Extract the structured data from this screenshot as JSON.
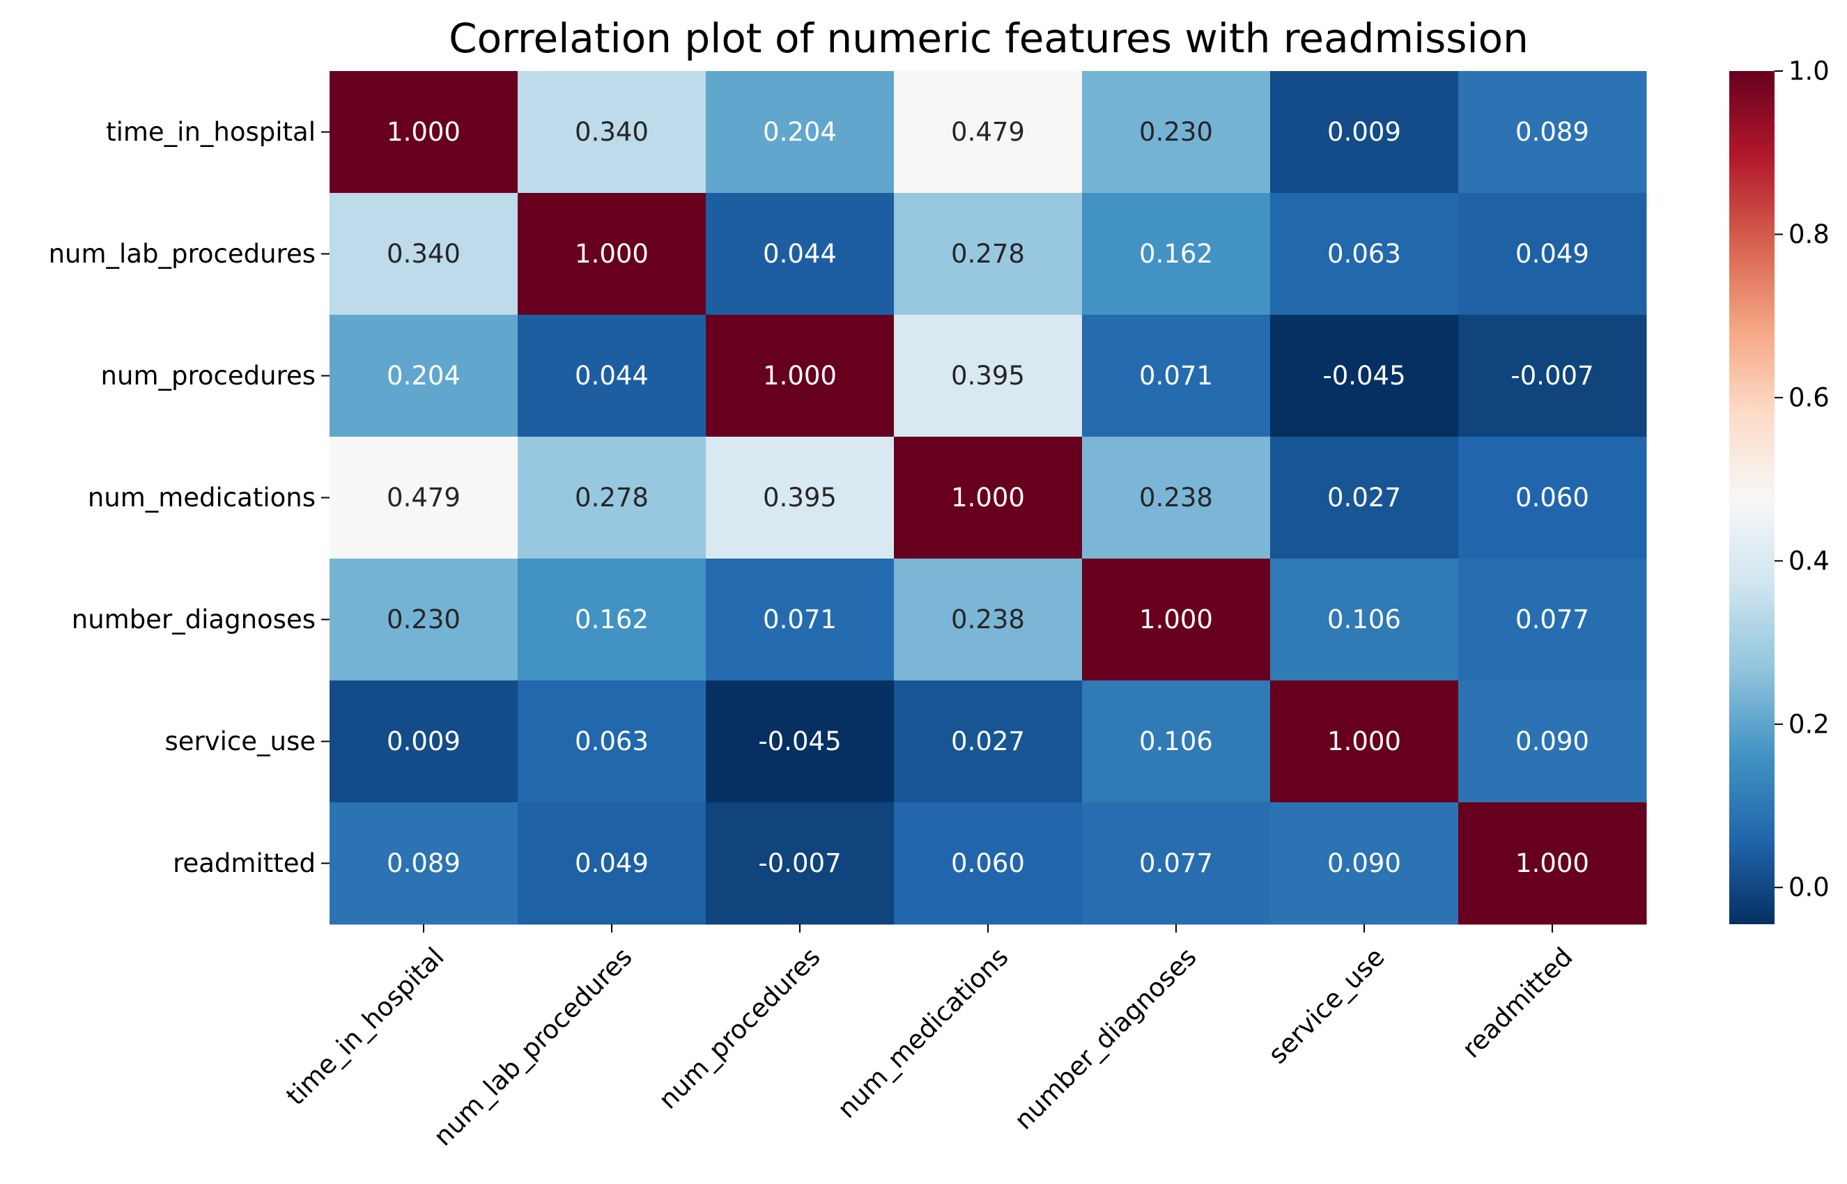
{
  "chart_data": {
    "type": "heatmap",
    "title": "Correlation plot of numeric features with readmission",
    "xlabel": "",
    "ylabel": "",
    "rows": [
      "time_in_hospital",
      "num_lab_procedures",
      "num_procedures",
      "num_medications",
      "number_diagnoses",
      "service_use",
      "readmitted"
    ],
    "columns": [
      "time_in_hospital",
      "num_lab_procedures",
      "num_procedures",
      "num_medications",
      "number_diagnoses",
      "service_use",
      "readmitted"
    ],
    "values": [
      [
        1.0,
        0.34,
        0.204,
        0.479,
        0.23,
        0.009,
        0.089
      ],
      [
        0.34,
        1.0,
        0.044,
        0.278,
        0.162,
        0.063,
        0.049
      ],
      [
        0.204,
        0.044,
        1.0,
        0.395,
        0.071,
        -0.045,
        -0.007
      ],
      [
        0.479,
        0.278,
        0.395,
        1.0,
        0.238,
        0.027,
        0.06
      ],
      [
        0.23,
        0.162,
        0.071,
        0.238,
        1.0,
        0.106,
        0.077
      ],
      [
        0.009,
        0.063,
        -0.045,
        0.027,
        0.106,
        1.0,
        0.09
      ],
      [
        0.089,
        0.049,
        -0.007,
        0.06,
        0.077,
        0.09,
        1.0
      ]
    ],
    "value_format": "3 decimals",
    "colormap": "RdBu_r",
    "colorbar": {
      "range": [
        -0.045,
        1.0
      ],
      "ticks": [
        0.0,
        0.2,
        0.4,
        0.6,
        0.8,
        1.0
      ],
      "tick_labels": [
        "0.0",
        "0.2",
        "0.4",
        "0.6",
        "0.8",
        "1.0"
      ]
    },
    "colors": {
      "low": "#053061",
      "mid": "#f7f7f7",
      "high": "#67001f",
      "dark_text": "#262626",
      "light_text": "#ffffff"
    }
  }
}
